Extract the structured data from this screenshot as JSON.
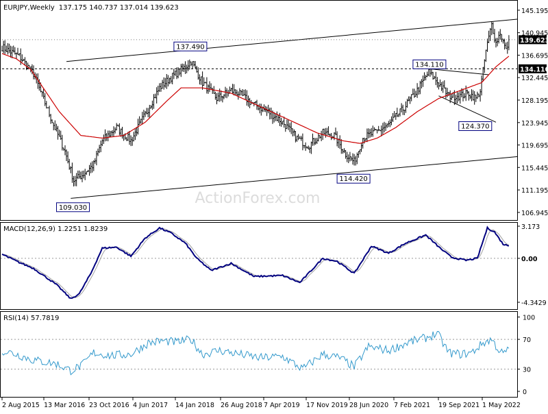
{
  "header": {
    "symbol": "EURJPY,Weekly",
    "ohlc": "137.175 140.737 137.014 139.623"
  },
  "watermark": "ActionForex.com",
  "colors": {
    "bars": "#000000",
    "ma": "#cc0000",
    "trendlines": "#000000",
    "macd": "#00007f",
    "signal": "#a0a0a0",
    "rsi": "#3399cc",
    "label_border": "#00007f",
    "last_price_bg": "#000000"
  },
  "chart_data": [
    {
      "type": "ohlc",
      "title": "EURJPY,Weekly",
      "yticks": [
        106.945,
        111.195,
        115.445,
        119.695,
        123.945,
        128.195,
        132.445,
        136.695,
        140.945,
        145.195
      ],
      "ylim": [
        105.5,
        147.0
      ],
      "xticks": [
        "2 Aug 2015",
        "13 Mar 2016",
        "23 Oct 2016",
        "4 Jun 2017",
        "14 Jan 2018",
        "26 Aug 2018",
        "7 Apr 2019",
        "17 Nov 2019",
        "28 Jun 2020",
        "7 Feb 2021",
        "19 Sep 2021",
        "1 May 2022"
      ],
      "n_bars": 355,
      "close_anchors": [
        [
          0,
          138.2
        ],
        [
          12,
          136.5
        ],
        [
          22,
          133.2
        ],
        [
          36,
          123.5
        ],
        [
          44,
          118.5
        ],
        [
          50,
          113.0
        ],
        [
          56,
          114.0
        ],
        [
          64,
          116.0
        ],
        [
          70,
          120.5
        ],
        [
          80,
          123.0
        ],
        [
          90,
          120.5
        ],
        [
          100,
          125.5
        ],
        [
          110,
          130.5
        ],
        [
          118,
          132.5
        ],
        [
          128,
          134.5
        ],
        [
          132,
          135.6
        ],
        [
          140,
          131.5
        ],
        [
          150,
          128.5
        ],
        [
          160,
          130.0
        ],
        [
          165,
          129.5
        ],
        [
          175,
          127.5
        ],
        [
          186,
          126.0
        ],
        [
          196,
          124.0
        ],
        [
          206,
          121.0
        ],
        [
          214,
          119.5
        ],
        [
          224,
          122.0
        ],
        [
          232,
          121.5
        ],
        [
          240,
          118.0
        ],
        [
          246,
          116.5
        ],
        [
          252,
          121.0
        ],
        [
          260,
          122.0
        ],
        [
          270,
          123.5
        ],
        [
          280,
          126.5
        ],
        [
          290,
          130.0
        ],
        [
          298,
          133.5
        ],
        [
          306,
          131.0
        ],
        [
          312,
          129.0
        ],
        [
          320,
          129.0
        ],
        [
          326,
          129.5
        ],
        [
          331,
          128.5
        ],
        [
          334,
          130.0
        ],
        [
          338,
          137.5
        ],
        [
          342,
          142.5
        ],
        [
          345,
          139.0
        ],
        [
          348,
          141.0
        ],
        [
          352,
          137.5
        ],
        [
          354,
          139.623
        ]
      ],
      "ma_anchors": [
        [
          0,
          137.0
        ],
        [
          10,
          136.0
        ],
        [
          20,
          134.0
        ],
        [
          40,
          126.0
        ],
        [
          55,
          121.5
        ],
        [
          70,
          121.0
        ],
        [
          85,
          121.5
        ],
        [
          100,
          124.0
        ],
        [
          115,
          128.0
        ],
        [
          125,
          130.5
        ],
        [
          140,
          130.5
        ],
        [
          160,
          129.5
        ],
        [
          180,
          127.0
        ],
        [
          200,
          124.5
        ],
        [
          220,
          122.0
        ],
        [
          238,
          120.5
        ],
        [
          250,
          120.0
        ],
        [
          262,
          121.0
        ],
        [
          275,
          123.0
        ],
        [
          290,
          126.0
        ],
        [
          305,
          128.5
        ],
        [
          320,
          130.0
        ],
        [
          335,
          131.5
        ],
        [
          345,
          134.5
        ],
        [
          354,
          136.5
        ]
      ],
      "series": [
        {
          "name": "",
          "type": "ohlc"
        },
        {
          "name": "",
          "type": "moving-average"
        }
      ],
      "annotations": [
        {
          "text": "109.030",
          "bar": 50,
          "price": 109.03
        },
        {
          "text": "137.490",
          "bar": 132,
          "price": 137.49
        },
        {
          "text": "114.420",
          "bar": 246,
          "price": 114.42
        },
        {
          "text": "134.110",
          "bar": 299,
          "price": 134.11
        },
        {
          "text": "124.370",
          "bar": 331,
          "price": 124.37
        }
      ],
      "price_tags": [
        {
          "text": "139.623",
          "price": 139.623,
          "style": "dark"
        },
        {
          "text": "134.110",
          "price": 134.11,
          "style": "dark"
        }
      ],
      "lines": [
        {
          "kind": "channel-upper",
          "from": [
            45,
            135.5
          ],
          "to": [
            374,
            143.5
          ]
        },
        {
          "kind": "channel-lower",
          "from": [
            48,
            109.6
          ],
          "to": [
            374,
            117.5
          ]
        },
        {
          "kind": "horizontal-dashed",
          "from": [
            0,
            134.11
          ],
          "to": [
            374,
            134.11
          ]
        },
        {
          "kind": "horizontal-dotted",
          "from": [
            0,
            139.623
          ],
          "to": [
            374,
            139.623
          ]
        },
        {
          "kind": "triangle-upper",
          "from": [
            299,
            134.1
          ],
          "to": [
            340,
            133.0
          ]
        },
        {
          "kind": "triangle-lower",
          "from": [
            305,
            129.0
          ],
          "to": [
            345,
            124.0
          ]
        }
      ],
      "grid": false
    },
    {
      "type": "line",
      "title": "MACD(12,26,9) 1.2251 1.8239",
      "yticks": [
        "3.173",
        "0.00",
        "-4.3429"
      ],
      "ylim": [
        -4.3429,
        3.173
      ],
      "macd_anchors": [
        [
          0,
          0.4
        ],
        [
          12,
          -0.4
        ],
        [
          22,
          -1.0
        ],
        [
          38,
          -2.6
        ],
        [
          48,
          -4.0
        ],
        [
          54,
          -3.5
        ],
        [
          62,
          -1.5
        ],
        [
          70,
          1.0
        ],
        [
          80,
          1.1
        ],
        [
          90,
          0.2
        ],
        [
          100,
          2.0
        ],
        [
          110,
          3.0
        ],
        [
          118,
          2.5
        ],
        [
          128,
          1.5
        ],
        [
          136,
          0.0
        ],
        [
          146,
          -1.2
        ],
        [
          160,
          -0.5
        ],
        [
          176,
          -1.8
        ],
        [
          196,
          -1.7
        ],
        [
          208,
          -2.4
        ],
        [
          224,
          0.0
        ],
        [
          234,
          -0.3
        ],
        [
          246,
          -1.5
        ],
        [
          258,
          1.2
        ],
        [
          270,
          0.5
        ],
        [
          282,
          1.5
        ],
        [
          296,
          2.3
        ],
        [
          306,
          1.0
        ],
        [
          314,
          0.1
        ],
        [
          324,
          -0.2
        ],
        [
          332,
          0.0
        ],
        [
          339,
          3.0
        ],
        [
          344,
          2.6
        ],
        [
          350,
          1.4
        ],
        [
          354,
          1.2251
        ]
      ],
      "signal_lag": 4,
      "zero_line": 0
    },
    {
      "type": "line",
      "title": "RSI(14) 57.7819",
      "yticks": [
        "100",
        "70",
        "30",
        "0"
      ],
      "ylim": [
        0,
        100
      ],
      "levels": [
        70,
        30
      ],
      "rsi_anchors": [
        [
          0,
          55
        ],
        [
          10,
          50
        ],
        [
          22,
          42
        ],
        [
          38,
          37
        ],
        [
          48,
          28
        ],
        [
          56,
          35
        ],
        [
          64,
          52
        ],
        [
          76,
          48
        ],
        [
          90,
          50
        ],
        [
          102,
          65
        ],
        [
          112,
          68
        ],
        [
          122,
          66
        ],
        [
          132,
          70
        ],
        [
          140,
          50
        ],
        [
          152,
          55
        ],
        [
          166,
          50
        ],
        [
          180,
          45
        ],
        [
          196,
          47
        ],
        [
          210,
          30
        ],
        [
          224,
          50
        ],
        [
          236,
          45
        ],
        [
          246,
          33
        ],
        [
          256,
          60
        ],
        [
          270,
          55
        ],
        [
          284,
          66
        ],
        [
          296,
          72
        ],
        [
          304,
          78
        ],
        [
          312,
          52
        ],
        [
          320,
          50
        ],
        [
          328,
          52
        ],
        [
          336,
          65
        ],
        [
          342,
          70
        ],
        [
          346,
          58
        ],
        [
          350,
          50
        ],
        [
          354,
          57.8
        ]
      ]
    }
  ]
}
